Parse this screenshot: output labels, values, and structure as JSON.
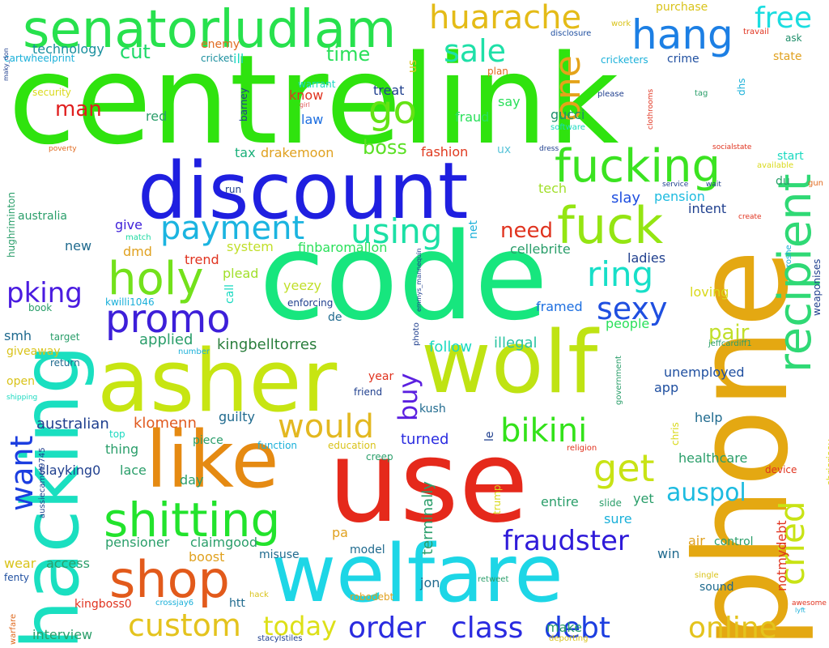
{
  "words": [
    {
      "text": "centrelink",
      "color": "#2fe30e",
      "vertical": false
    },
    {
      "text": "code",
      "color": "#17e67e",
      "vertical": false
    },
    {
      "text": "use",
      "color": "#e5291b",
      "vertical": false
    },
    {
      "text": "asher",
      "color": "#c7e512",
      "vertical": false
    },
    {
      "text": "wolf",
      "color": "#bfe313",
      "vertical": false
    },
    {
      "text": "phone",
      "color": "#e4a812",
      "vertical": true
    },
    {
      "text": "hacking",
      "color": "#1adfc0",
      "vertical": true
    },
    {
      "text": "discount",
      "color": "#1f1fe0",
      "vertical": false
    },
    {
      "text": "welfare",
      "color": "#1dd6e6",
      "vertical": false
    },
    {
      "text": "like",
      "color": "#e58a12",
      "vertical": false
    },
    {
      "text": "senatorludlam",
      "color": "#27e14d",
      "vertical": false
    },
    {
      "text": "fucking",
      "color": "#3be321",
      "vertical": false
    },
    {
      "text": "fuck",
      "color": "#94e512",
      "vertical": false
    },
    {
      "text": "recipient",
      "color": "#2fd975",
      "vertical": true
    },
    {
      "text": "shitting",
      "color": "#22e32c",
      "vertical": false
    },
    {
      "text": "holy",
      "color": "#73e11b",
      "vertical": false
    },
    {
      "text": "promo",
      "color": "#3d1fd9",
      "vertical": false
    },
    {
      "text": "shop",
      "color": "#e25a1b",
      "vertical": false
    },
    {
      "text": "payment",
      "color": "#1bb4e0",
      "vertical": false
    },
    {
      "text": "hang",
      "color": "#1c7fe4",
      "vertical": false
    },
    {
      "text": "huarache",
      "color": "#e4bb17",
      "vertical": false
    },
    {
      "text": "free",
      "color": "#1bdde0",
      "vertical": false
    },
    {
      "text": "sale",
      "color": "#1ee0a8",
      "vertical": false
    },
    {
      "text": "go",
      "color": "#64e314",
      "vertical": false
    },
    {
      "text": "one",
      "color": "#e4a31a",
      "vertical": true
    },
    {
      "text": "using",
      "color": "#1ce0a5",
      "vertical": false
    },
    {
      "text": "ring",
      "color": "#17dfc8",
      "vertical": false
    },
    {
      "text": "sexy",
      "color": "#1f4fe0",
      "vertical": false
    },
    {
      "text": "get",
      "color": "#c8e315",
      "vertical": false
    },
    {
      "text": "bikini",
      "color": "#33e21a",
      "vertical": false
    },
    {
      "text": "would",
      "color": "#e3b820",
      "vertical": false
    },
    {
      "text": "custom",
      "color": "#e4c31d",
      "vertical": false
    },
    {
      "text": "today",
      "color": "#dde018",
      "vertical": false
    },
    {
      "text": "order",
      "color": "#2a2be0",
      "vertical": false
    },
    {
      "text": "class",
      "color": "#2a2be0",
      "vertical": false
    },
    {
      "text": "debt",
      "color": "#1c3ee0",
      "vertical": false
    },
    {
      "text": "online",
      "color": "#e4c31d",
      "vertical": false
    },
    {
      "text": "fraudster",
      "color": "#2f1bd9",
      "vertical": false
    },
    {
      "text": "auspol",
      "color": "#1dbbe0",
      "vertical": false
    },
    {
      "text": "cried",
      "color": "#c8e315",
      "vertical": true
    },
    {
      "text": "buy",
      "color": "#5b20e0",
      "vertical": true
    },
    {
      "text": "want",
      "color": "#1c3ee0",
      "vertical": true
    },
    {
      "text": "pking",
      "color": "#4a1be0",
      "vertical": false
    },
    {
      "text": "man",
      "color": "#e01f1f",
      "vertical": false
    },
    {
      "text": "cut",
      "color": "#1fd96a",
      "vertical": false
    },
    {
      "text": "time",
      "color": "#2ae05a",
      "vertical": false
    },
    {
      "text": "technology",
      "color": "#1a8f9e",
      "vertical": false
    },
    {
      "text": "boss",
      "color": "#5be025",
      "vertical": false
    },
    {
      "text": "need",
      "color": "#e0331f",
      "vertical": false
    },
    {
      "text": "pair",
      "color": "#c1df2a",
      "vertical": false
    },
    {
      "text": "kingbelltorres",
      "color": "#2a7e3c",
      "vertical": false
    },
    {
      "text": "follow",
      "color": "#1ad9c0",
      "vertical": false
    },
    {
      "text": "illegal",
      "color": "#2ac4a2",
      "vertical": false
    },
    {
      "text": "klomenn",
      "color": "#e05a1f",
      "vertical": false
    },
    {
      "text": "australian",
      "color": "#1f3f8e",
      "vertical": false
    },
    {
      "text": "turned",
      "color": "#2a2be0",
      "vertical": false
    },
    {
      "text": "pension",
      "color": "#1dbbe0",
      "vertical": false
    },
    {
      "text": "slay",
      "color": "#1f4fe0",
      "vertical": false
    },
    {
      "text": "tech",
      "color": "#a1df2a",
      "vertical": false
    },
    {
      "text": "intent",
      "color": "#1f3f8e",
      "vertical": false
    },
    {
      "text": "gucci",
      "color": "#1f8e6a",
      "vertical": false
    },
    {
      "text": "fraud",
      "color": "#2ae05a",
      "vertical": false
    },
    {
      "text": "fashion",
      "color": "#e03a1f",
      "vertical": false
    },
    {
      "text": "say",
      "color": "#2ae05a",
      "vertical": false
    },
    {
      "text": "treat",
      "color": "#1f3f8e",
      "vertical": false
    },
    {
      "text": "law",
      "color": "#1c6ee0",
      "vertical": false
    },
    {
      "text": "know",
      "color": "#e0331f",
      "vertical": false
    },
    {
      "text": "red",
      "color": "#2a9e6a",
      "vertical": false
    },
    {
      "text": "tax",
      "color": "#1ab07a",
      "vertical": false
    },
    {
      "text": "drakemoon",
      "color": "#e0a11f",
      "vertical": false
    },
    {
      "text": "ux",
      "color": "#5ac4d9",
      "vertical": false
    },
    {
      "text": "ill",
      "color": "#1ad9c0",
      "vertical": false
    },
    {
      "text": "enemy",
      "color": "#e06a1f",
      "vertical": false
    },
    {
      "text": "cricket",
      "color": "#1a8f9e",
      "vertical": false
    },
    {
      "text": "purchase",
      "color": "#d9c31a",
      "vertical": false
    },
    {
      "text": "work",
      "color": "#d9c31a",
      "vertical": false
    },
    {
      "text": "disclosure",
      "color": "#1f4fa0",
      "vertical": false
    },
    {
      "text": "crime",
      "color": "#1f4fa0",
      "vertical": false
    },
    {
      "text": "cricketers",
      "color": "#1ab0d9",
      "vertical": false
    },
    {
      "text": "state",
      "color": "#e0a11f",
      "vertical": false
    },
    {
      "text": "ask",
      "color": "#1f8e6a",
      "vertical": false
    },
    {
      "text": "travail",
      "color": "#e0331f",
      "vertical": false
    },
    {
      "text": "cartwheelprint",
      "color": "#1ab0d9",
      "vertical": false
    },
    {
      "text": "security",
      "color": "#d9d91a",
      "vertical": false
    },
    {
      "text": "warrant",
      "color": "#1ad9c0",
      "vertical": false
    },
    {
      "text": "barney",
      "color": "#1f3f8e",
      "vertical": true
    },
    {
      "text": "girl",
      "color": "#e05a5a",
      "vertical": false
    },
    {
      "text": "plan",
      "color": "#e06a1f",
      "vertical": false
    },
    {
      "text": "please",
      "color": "#1f3f8e",
      "vertical": false
    },
    {
      "text": "tag",
      "color": "#2a9e6a",
      "vertical": false
    },
    {
      "text": "dhs",
      "color": "#1ab0d9",
      "vertical": true
    },
    {
      "text": "clothrooms",
      "color": "#e0331f",
      "vertical": true
    },
    {
      "text": "software",
      "color": "#1ad9c0",
      "vertical": false
    },
    {
      "text": "dress",
      "color": "#1f3f8e",
      "vertical": false
    },
    {
      "text": "socialstate",
      "color": "#e0331f",
      "vertical": false
    },
    {
      "text": "available",
      "color": "#d9d91a",
      "vertical": false
    },
    {
      "text": "gun",
      "color": "#e06a1f",
      "vertical": false
    },
    {
      "text": "start",
      "color": "#1ad9c0",
      "vertical": false
    },
    {
      "text": "du",
      "color": "#2a9e6a",
      "vertical": false
    },
    {
      "text": "wait",
      "color": "#1f3f8e",
      "vertical": false
    },
    {
      "text": "service",
      "color": "#1f3f8e",
      "vertical": false
    },
    {
      "text": "create",
      "color": "#e0331f",
      "vertical": false
    },
    {
      "text": "poverty",
      "color": "#e06a1f",
      "vertical": false
    },
    {
      "text": "run",
      "color": "#1f3f8e",
      "vertical": false
    },
    {
      "text": "give",
      "color": "#3d1fd9",
      "vertical": false
    },
    {
      "text": "match",
      "color": "#1ad9a0",
      "vertical": false
    },
    {
      "text": "australia",
      "color": "#2a9e6a",
      "vertical": false
    },
    {
      "text": "hughriminton",
      "color": "#2a9e6a",
      "vertical": true
    },
    {
      "text": "new",
      "color": "#1f6a8e",
      "vertical": false
    },
    {
      "text": "dmd",
      "color": "#e0a11f",
      "vertical": false
    },
    {
      "text": "system",
      "color": "#c1df2a",
      "vertical": false
    },
    {
      "text": "finbaromallon",
      "color": "#2ae05a",
      "vertical": false
    },
    {
      "text": "trend",
      "color": "#e0331f",
      "vertical": false
    },
    {
      "text": "plead",
      "color": "#a1df2a",
      "vertical": false
    },
    {
      "text": "net",
      "color": "#1ab0d9",
      "vertical": true
    },
    {
      "text": "cellebrite",
      "color": "#2a9e6a",
      "vertical": false
    },
    {
      "text": "ladies",
      "color": "#1f3f8e",
      "vertical": false
    },
    {
      "text": "loving",
      "color": "#d9d91a",
      "vertical": false
    },
    {
      "text": "roshe",
      "color": "#1ab0d9",
      "vertical": true
    },
    {
      "text": "weaponises",
      "color": "#1f3f8e",
      "vertical": true
    },
    {
      "text": "yeezy",
      "color": "#c1df2a",
      "vertical": false
    },
    {
      "text": "enforcing",
      "color": "#1f3f8e",
      "vertical": false
    },
    {
      "text": "de",
      "color": "#1f6a8e",
      "vertical": false
    },
    {
      "text": "kwilli1046",
      "color": "#1ab0d9",
      "vertical": false
    },
    {
      "text": "call",
      "color": "#1ad9c0",
      "vertical": true
    },
    {
      "text": "photo",
      "color": "#1f3f8e",
      "vertical": true
    },
    {
      "text": "emmys_mannequin",
      "color": "#1f3f8e",
      "vertical": true
    },
    {
      "text": "framed",
      "color": "#1c6ee0",
      "vertical": false
    },
    {
      "text": "people",
      "color": "#2ae05a",
      "vertical": false
    },
    {
      "text": "book",
      "color": "#2a9e6a",
      "vertical": false
    },
    {
      "text": "smh",
      "color": "#1f6a8e",
      "vertical": false
    },
    {
      "text": "target",
      "color": "#2a9e6a",
      "vertical": false
    },
    {
      "text": "applied",
      "color": "#2a9e6a",
      "vertical": false
    },
    {
      "text": "number",
      "color": "#1ab0d9",
      "vertical": false
    },
    {
      "text": "giveaway",
      "color": "#d9c31a",
      "vertical": false
    },
    {
      "text": "return",
      "color": "#1f6a8e",
      "vertical": false
    },
    {
      "text": "jeffcardiff1",
      "color": "#2a9e6a",
      "vertical": false
    },
    {
      "text": "government",
      "color": "#2a9e6a",
      "vertical": true
    },
    {
      "text": "unemployed",
      "color": "#1f4fa0",
      "vertical": false
    },
    {
      "text": "app",
      "color": "#1f4fa0",
      "vertical": false
    },
    {
      "text": "open",
      "color": "#d9c31a",
      "vertical": false
    },
    {
      "text": "shipping",
      "color": "#1ad9c0",
      "vertical": false
    },
    {
      "text": "year",
      "color": "#e0331f",
      "vertical": false
    },
    {
      "text": "friend",
      "color": "#1f3f8e",
      "vertical": false
    },
    {
      "text": "kush",
      "color": "#1f6a8e",
      "vertical": false
    },
    {
      "text": "guilty",
      "color": "#1f6a8e",
      "vertical": false
    },
    {
      "text": "chris",
      "color": "#d9d91a",
      "vertical": true
    },
    {
      "text": "chrisrisey",
      "color": "#d9d91a",
      "vertical": true
    },
    {
      "text": "help",
      "color": "#1f6a8e",
      "vertical": false
    },
    {
      "text": "le",
      "color": "#1f3f8e",
      "vertical": true
    },
    {
      "text": "aussiecamel9745",
      "color": "#1f3f8e",
      "vertical": true
    },
    {
      "text": "top",
      "color": "#1ad9c0",
      "vertical": false
    },
    {
      "text": "thing",
      "color": "#2a9e6a",
      "vertical": false
    },
    {
      "text": "piece",
      "color": "#2a9e6a",
      "vertical": false
    },
    {
      "text": "function",
      "color": "#1ab0d9",
      "vertical": false
    },
    {
      "text": "education",
      "color": "#d9c31a",
      "vertical": false
    },
    {
      "text": "religion",
      "color": "#e0331f",
      "vertical": false
    },
    {
      "text": "healthcare",
      "color": "#2a9e6a",
      "vertical": false
    },
    {
      "text": "lace",
      "color": "#2a9e6a",
      "vertical": false
    },
    {
      "text": "creep",
      "color": "#2a9e6a",
      "vertical": false
    },
    {
      "text": "terminally",
      "color": "#2a9e6a",
      "vertical": true
    },
    {
      "text": "device",
      "color": "#e0331f",
      "vertical": false
    },
    {
      "text": "day",
      "color": "#2a9e6a",
      "vertical": false
    },
    {
      "text": "slayking0",
      "color": "#1f3f8e",
      "vertical": false
    },
    {
      "text": "trump",
      "color": "#d9d91a",
      "vertical": true
    },
    {
      "text": "entire",
      "color": "#2a9e6a",
      "vertical": false
    },
    {
      "text": "slide",
      "color": "#2a9e6a",
      "vertical": false
    },
    {
      "text": "yet",
      "color": "#2a9e6a",
      "vertical": false
    },
    {
      "text": "sure",
      "color": "#1ab0d9",
      "vertical": false
    },
    {
      "text": "notmydebt",
      "color": "#e0331f",
      "vertical": true
    },
    {
      "text": "pa",
      "color": "#e0a11f",
      "vertical": false
    },
    {
      "text": "model",
      "color": "#1f6a8e",
      "vertical": false
    },
    {
      "text": "pensioner",
      "color": "#2a9e6a",
      "vertical": false
    },
    {
      "text": "claimgood",
      "color": "#2a9e6a",
      "vertical": false
    },
    {
      "text": "air",
      "color": "#e0a11f",
      "vertical": false
    },
    {
      "text": "control",
      "color": "#2a9e6a",
      "vertical": false
    },
    {
      "text": "win",
      "color": "#1f6a8e",
      "vertical": false
    },
    {
      "text": "boost",
      "color": "#e0a11f",
      "vertical": false
    },
    {
      "text": "misuse",
      "color": "#1f6a8e",
      "vertical": false
    },
    {
      "text": "wear",
      "color": "#d9c31a",
      "vertical": false
    },
    {
      "text": "access",
      "color": "#2a9e6a",
      "vertical": false
    },
    {
      "text": "fenty",
      "color": "#1f4fa0",
      "vertical": false
    },
    {
      "text": "jon",
      "color": "#1f6a8e",
      "vertical": false
    },
    {
      "text": "retweet",
      "color": "#2a9e6a",
      "vertical": false
    },
    {
      "text": "single",
      "color": "#d9c31a",
      "vertical": false
    },
    {
      "text": "sound",
      "color": "#1f6a8e",
      "vertical": false
    },
    {
      "text": "awesome",
      "color": "#e0331f",
      "vertical": false
    },
    {
      "text": "lyft",
      "color": "#1ab0d9",
      "vertical": false
    },
    {
      "text": "kingboss0",
      "color": "#e0331f",
      "vertical": false
    },
    {
      "text": "crossjay6",
      "color": "#1ab0d9",
      "vertical": false
    },
    {
      "text": "htt",
      "color": "#1f6a8e",
      "vertical": false
    },
    {
      "text": "hack",
      "color": "#d9c31a",
      "vertical": false
    },
    {
      "text": "robodebt",
      "color": "#e0a11f",
      "vertical": false
    },
    {
      "text": "interview",
      "color": "#2a9e6a",
      "vertical": false
    },
    {
      "text": "make",
      "color": "#2a9e6a",
      "vertical": false
    },
    {
      "text": "stacylstiles",
      "color": "#1f3f8e",
      "vertical": false
    },
    {
      "text": "deporting",
      "color": "#d9c31a",
      "vertical": false
    },
    {
      "text": "warfare",
      "color": "#e06a1f",
      "vertical": true
    },
    {
      "text": "maky_don",
      "color": "#1f3f8e",
      "vertical": true
    },
    {
      "text": "us",
      "color": "#d9c31a",
      "vertical": true
    }
  ]
}
